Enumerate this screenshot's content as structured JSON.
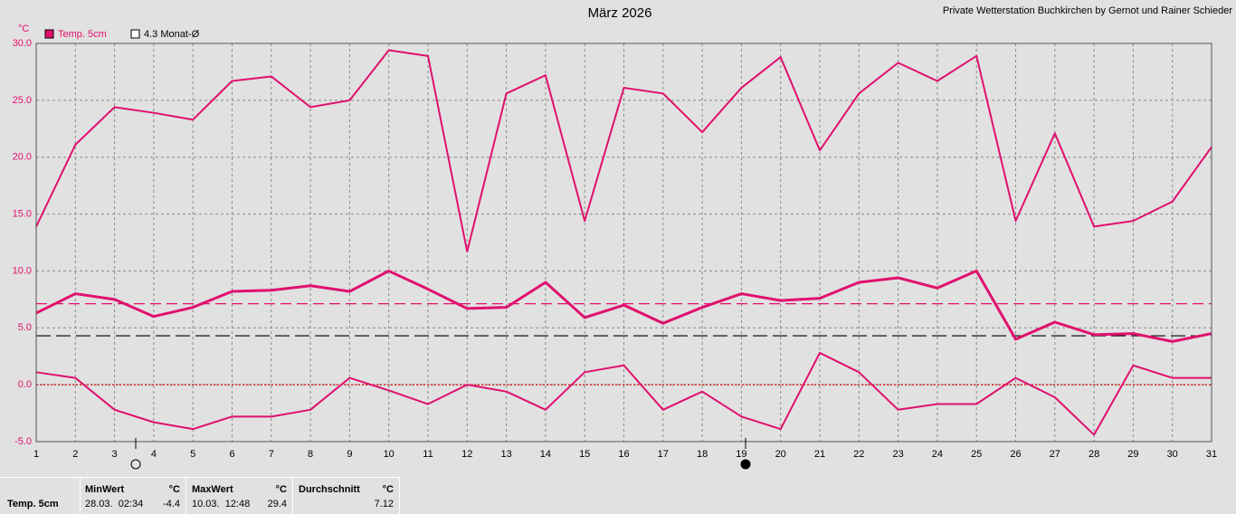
{
  "chart_data": {
    "type": "line",
    "title": "März 2026",
    "credit": "Private Wetterstation Buchkirchen by Gernot und Rainer Schieder",
    "y_unit": "°C",
    "x": [
      1,
      2,
      3,
      4,
      5,
      6,
      7,
      8,
      9,
      10,
      11,
      12,
      13,
      14,
      15,
      16,
      17,
      18,
      19,
      20,
      21,
      22,
      23,
      24,
      25,
      26,
      27,
      28,
      29,
      30,
      31
    ],
    "series": [
      {
        "color": "#e0106e",
        "width": 2,
        "values": [
          13.9,
          21.1,
          24.4,
          23.9,
          23.3,
          26.7,
          27.1,
          24.4,
          25.0,
          29.4,
          28.9,
          11.7,
          25.6,
          27.2,
          14.4,
          26.1,
          25.6,
          22.2,
          26.1,
          28.8,
          20.6,
          25.6,
          28.3,
          26.7,
          28.9,
          14.4,
          22.1,
          13.9,
          14.4,
          16.1,
          20.9
        ]
      },
      {
        "color": "#e0106e",
        "width": 3,
        "values": [
          6.3,
          8.0,
          7.5,
          6.0,
          6.8,
          8.2,
          8.3,
          8.7,
          8.2,
          10.0,
          8.4,
          6.7,
          6.8,
          9.0,
          5.9,
          7.0,
          5.4,
          6.8,
          8.0,
          7.4,
          7.6,
          9.0,
          9.4,
          8.5,
          10.0,
          4.0,
          5.5,
          4.4,
          4.5,
          3.8,
          4.5
        ]
      },
      {
        "color": "#e0106e",
        "width": 2,
        "values": [
          1.1,
          0.6,
          -2.2,
          -3.3,
          -3.9,
          -2.8,
          -2.8,
          -2.2,
          0.6,
          -0.5,
          -1.7,
          0.0,
          -0.6,
          -2.2,
          1.1,
          1.7,
          -2.2,
          -0.6,
          -2.8,
          -3.9,
          2.8,
          1.1,
          -2.2,
          -1.7,
          -1.7,
          0.6,
          -1.1,
          -4.4,
          1.7,
          0.6,
          0.6
        ]
      }
    ],
    "legend": [
      {
        "label": "Temp. 5cm",
        "color": "#e0106e",
        "swatch": "filled"
      },
      {
        "label": "4.3 Monat-Ø",
        "color": "#000000",
        "swatch": "empty"
      }
    ],
    "reference_lines": [
      {
        "value": 7.12,
        "color": "#e0106e",
        "dash": "12 6"
      },
      {
        "value": 4.3,
        "color": "#000000",
        "dash": "16 6"
      },
      {
        "value": 0,
        "color": "#e00000",
        "dash": "2 2"
      }
    ],
    "xlim": [
      1,
      31
    ],
    "ylim": [
      -5,
      30
    ],
    "xticks": [
      1,
      2,
      3,
      4,
      5,
      6,
      7,
      8,
      9,
      10,
      11,
      12,
      13,
      14,
      15,
      16,
      17,
      18,
      19,
      20,
      21,
      22,
      23,
      24,
      25,
      26,
      27,
      28,
      29,
      30,
      31
    ],
    "yticks": [
      {
        "value": -5,
        "label": "-5.0"
      },
      {
        "value": 0,
        "label": "0.0"
      },
      {
        "value": 5,
        "label": "5.0"
      },
      {
        "value": 10,
        "label": "10.0"
      },
      {
        "value": 15,
        "label": "15.0"
      },
      {
        "value": 20,
        "label": "20.0"
      },
      {
        "value": 25,
        "label": "25.0"
      },
      {
        "value": 30,
        "label": "30.0"
      }
    ],
    "grid": true
  },
  "table": {
    "row_label": "Temp. 5cm",
    "columns": [
      {
        "header": "MinWert",
        "unit": "°C",
        "time": "28.03.  02:34",
        "value": "-4.4"
      },
      {
        "header": "MaxWert",
        "unit": "°C",
        "time": "10.03.  12:48",
        "value": "29.4"
      },
      {
        "header": "Durchschnitt",
        "unit": "°C",
        "value": "7.12"
      }
    ]
  }
}
